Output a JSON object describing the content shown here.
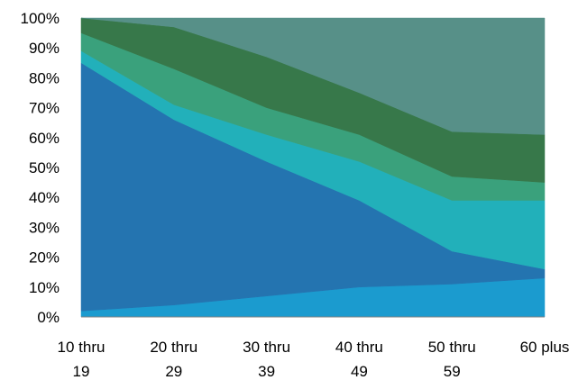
{
  "chart_data": {
    "type": "area",
    "stacked": true,
    "normalized_percent": true,
    "title": "",
    "xlabel": "",
    "ylabel": "",
    "categories": [
      [
        "10 thru",
        "19"
      ],
      [
        "20 thru",
        "29"
      ],
      [
        "30 thru",
        "39"
      ],
      [
        "40 thru",
        "49"
      ],
      [
        "50 thru",
        "59"
      ],
      [
        "60 plus",
        ""
      ]
    ],
    "ylim": [
      0,
      100
    ],
    "y_ticks": [
      "0%",
      "10%",
      "20%",
      "30%",
      "40%",
      "50%",
      "60%",
      "70%",
      "80%",
      "90%",
      "100%"
    ],
    "grid": false,
    "legend": "none",
    "series": [
      {
        "values": [
          2,
          4,
          7,
          10,
          11,
          13
        ],
        "color": "#1b9bcf"
      },
      {
        "values": [
          83,
          62,
          45,
          29,
          11,
          3
        ],
        "color": "#2474b0"
      },
      {
        "values": [
          4,
          5,
          9,
          13,
          17,
          23
        ],
        "color": "#22b0ba"
      },
      {
        "values": [
          6,
          12,
          9,
          9,
          8,
          6
        ],
        "color": "#3aa17c"
      },
      {
        "values": [
          5,
          14,
          17,
          14,
          15,
          16
        ],
        "color": "#37784a"
      },
      {
        "values": [
          0,
          3,
          13,
          25,
          38,
          39
        ],
        "color": "#579088"
      }
    ]
  }
}
